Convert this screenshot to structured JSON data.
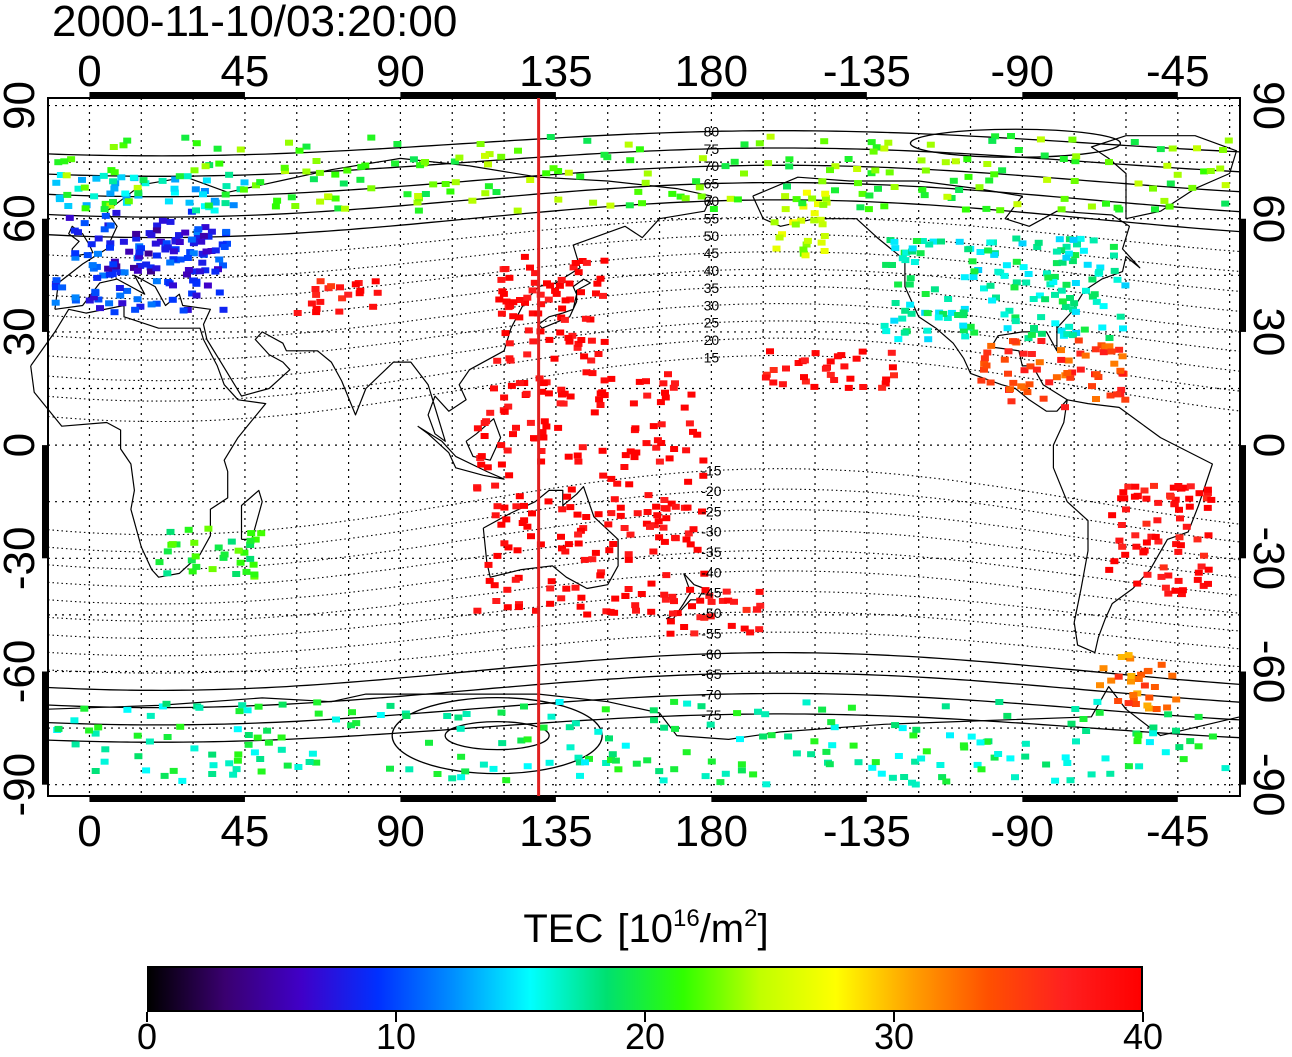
{
  "title": "2000-11-10/03:20:00",
  "map": {
    "lon_ticks_top": [
      "0",
      "45",
      "90",
      "135",
      "180",
      "-135",
      "-90",
      "-45"
    ],
    "lon_ticks_bottom": [
      "0",
      "45",
      "90",
      "135",
      "180",
      "-135",
      "-90",
      "-45"
    ],
    "lat_ticks_left": [
      "90",
      "60",
      "30",
      "0",
      "-30",
      "-60",
      "-90"
    ],
    "lat_ticks_right": [
      "90",
      "60",
      "30",
      "0",
      "-30",
      "-60",
      "-90"
    ],
    "lon_values": [
      0,
      45,
      90,
      135,
      180,
      225,
      270,
      315
    ],
    "lat_values": [
      90,
      60,
      30,
      0,
      -30,
      -60,
      -90
    ],
    "lon_range": [
      -12,
      333
    ],
    "lat_range": [
      -93,
      92
    ],
    "grid": true,
    "grid_spacing_deg": 15,
    "meridian_line_lon": 130,
    "meridian_line_color": "#e02020",
    "contour_labels": [
      "80",
      "75",
      "70",
      "65",
      "60",
      "55",
      "50",
      "45",
      "40",
      "35",
      "30",
      "25",
      "20",
      "15",
      "-15",
      "-20",
      "-25",
      "-30",
      "-35",
      "-40",
      "-45",
      "-50",
      "-55",
      "-60",
      "-65",
      "-70",
      "-75"
    ]
  },
  "colorbar": {
    "title": "TEC",
    "unit_base": "[10",
    "unit_exp": "16",
    "unit_mid": "/m",
    "unit_exp2": "2",
    "unit_end": "]",
    "tick_labels": [
      "0",
      "10",
      "20",
      "30",
      "40"
    ],
    "tick_values": [
      0,
      10,
      20,
      30,
      40
    ],
    "range": [
      0,
      40
    ],
    "stops": [
      "#000000",
      "#3a0070",
      "#4000c8",
      "#0030ff",
      "#0090ff",
      "#00ffff",
      "#00e070",
      "#30ff00",
      "#c0ff00",
      "#ffff00",
      "#ffa000",
      "#ff5000",
      "#ff2020",
      "#ff0000"
    ]
  },
  "tec_regions": [
    {
      "lon": [
        -10,
        40
      ],
      "lat": [
        35,
        62
      ],
      "tec": 9
    },
    {
      "lon": [
        5,
        35
      ],
      "lat": [
        45,
        58
      ],
      "tec": 7
    },
    {
      "lon": [
        -10,
        45
      ],
      "lat": [
        62,
        72
      ],
      "tec": 15
    },
    {
      "lon": [
        20,
        50
      ],
      "lat": [
        -35,
        -22
      ],
      "tec": 20
    },
    {
      "lon": [
        60,
        85
      ],
      "lat": [
        35,
        45
      ],
      "tec": 38
    },
    {
      "lon": [
        118,
        150
      ],
      "lat": [
        22,
        50
      ],
      "tec": 40
    },
    {
      "lon": [
        112,
        178
      ],
      "lat": [
        -45,
        20
      ],
      "tec": 40
    },
    {
      "lon": [
        165,
        195
      ],
      "lat": [
        -50,
        -38
      ],
      "tec": 39
    },
    {
      "lon": [
        195,
        235
      ],
      "lat": [
        15,
        25
      ],
      "tec": 39
    },
    {
      "lon": [
        198,
        215
      ],
      "lat": [
        50,
        68
      ],
      "tec": 25
    },
    {
      "lon": [
        230,
        300
      ],
      "lat": [
        28,
        55
      ],
      "tec": 17
    },
    {
      "lon": [
        255,
        300
      ],
      "lat": [
        10,
        28
      ],
      "tec": 35
    },
    {
      "lon": [
        295,
        325
      ],
      "lat": [
        -40,
        -10
      ],
      "tec": 39
    },
    {
      "lon": [
        292,
        315
      ],
      "lat": [
        -70,
        -55
      ],
      "tec": 33
    },
    {
      "lon": [
        -10,
        330
      ],
      "lat": [
        -90,
        -68
      ],
      "tec": 18
    },
    {
      "lon": [
        -10,
        330
      ],
      "lat": [
        62,
        82
      ],
      "tec": 22
    }
  ]
}
